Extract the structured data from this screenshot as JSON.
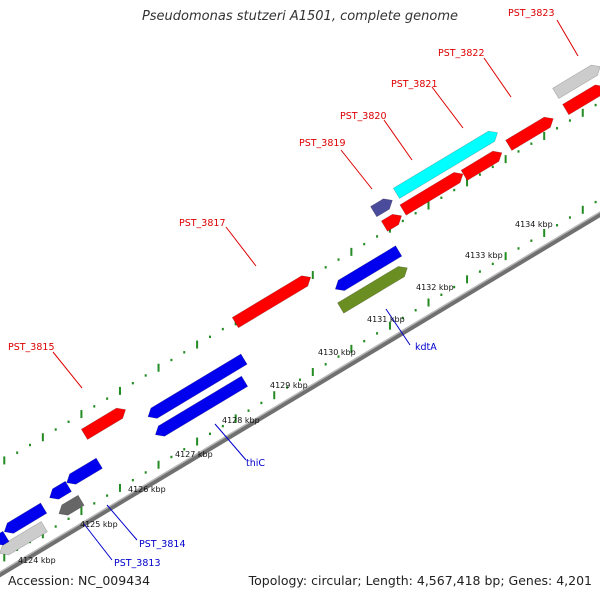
{
  "title": "Pseudomonas stutzeri A1501, complete genome",
  "footer": {
    "accession": "Accession: NC_009434",
    "summary": "Topology: circular; Length: 4,567,418 bp; Genes: 4,201"
  },
  "colors": {
    "forward_label": "#dd0000",
    "reverse_label": "#0000cc",
    "backbone": "#808080",
    "dotted_track": "#228b22",
    "red": "#ff0000",
    "blue": "#0000ee",
    "cyan": "#00ffff",
    "grey": "#cccccc",
    "darkgrey": "#666666",
    "olive": "#6b8e23",
    "navy": "#4b4b9b"
  },
  "tick_labels": [
    "4124 kbp",
    "4125 kbp",
    "4126 kbp",
    "4127 kbp",
    "4128 kbp",
    "4129 kbp",
    "4130 kbp",
    "4131 kbp",
    "4132 kbp",
    "4133 kbp",
    "4134 kbp"
  ],
  "gene_labels": [
    "PST_3823",
    "PST_3822",
    "PST_3821",
    "PST_3820",
    "PST_3819",
    "PST_3817",
    "PST_3815",
    "kdtA",
    "thiC",
    "PST_3814",
    "PST_3813"
  ]
}
